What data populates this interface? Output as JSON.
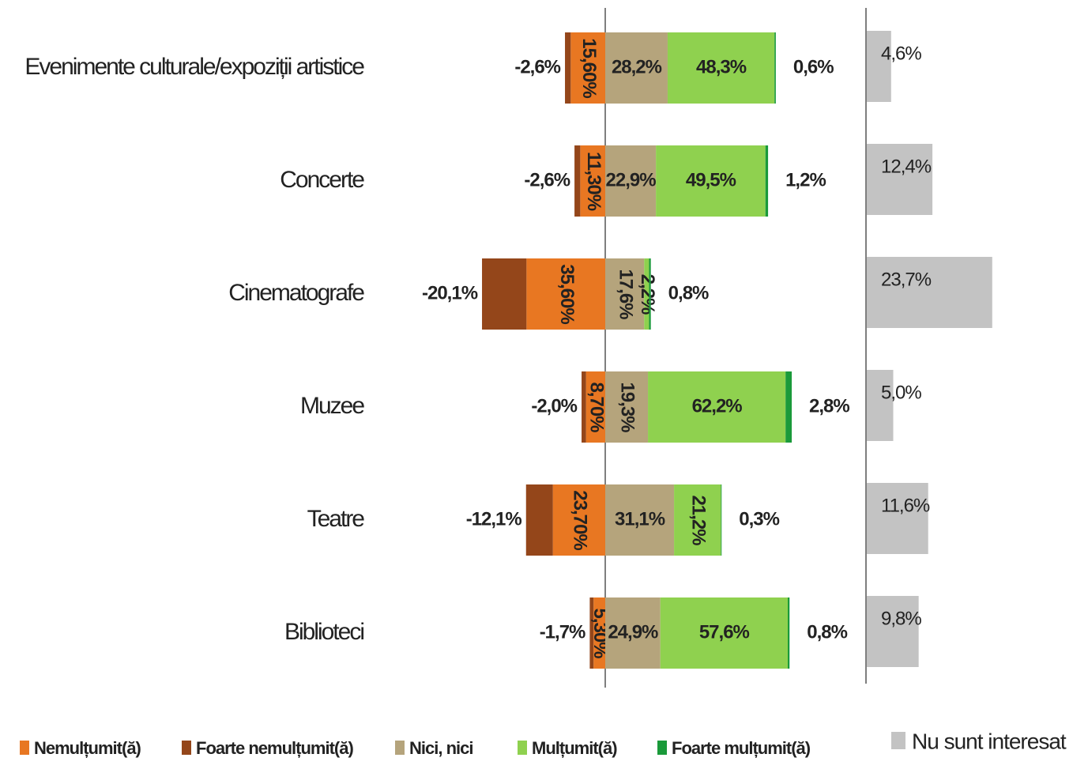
{
  "chart_data": {
    "type": "diverging-bar",
    "categories": [
      "Evenimente culturale/expoziții artistice",
      "Concerte",
      "Cinematografe",
      "Muzee",
      "Teatre",
      "Biblioteci"
    ],
    "series": [
      {
        "name": "Nemulțumit(ă)",
        "color": "#e87722",
        "values": [
          15.6,
          11.3,
          35.6,
          8.7,
          23.7,
          5.3
        ],
        "value_labels": [
          "15,60%",
          "11,30%",
          "35,60%",
          "8,70%",
          "23,70%",
          "5,30%"
        ]
      },
      {
        "name": "Foarte nemulțumit(ă)",
        "color": "#94461a",
        "values": [
          -2.6,
          -2.6,
          -20.1,
          -2.0,
          -12.1,
          -1.7
        ],
        "value_labels": [
          "-2,6%",
          "-2,6%",
          "-20,1%",
          "-2,0%",
          "-12,1%",
          "-1,7%"
        ]
      },
      {
        "name": "Nici, nici",
        "color": "#b5a47c",
        "values": [
          28.2,
          22.9,
          17.6,
          19.3,
          31.1,
          24.9
        ],
        "value_labels": [
          "28,2%",
          "22,9%",
          "17,6%",
          "19,3%",
          "31,1%",
          "24,9%"
        ]
      },
      {
        "name": "Mulțumit(ă)",
        "color": "#8fd14f",
        "values": [
          48.3,
          49.5,
          2.2,
          62.2,
          21.2,
          57.6
        ],
        "value_labels": [
          "48,3%",
          "49,5%",
          "2,2%",
          "62,2%",
          "21,2%",
          "57,6%"
        ]
      },
      {
        "name": "Foarte mulțumit(ă)",
        "color": "#1a9a3a",
        "values": [
          0.6,
          1.2,
          0.8,
          2.8,
          0.3,
          0.8
        ],
        "value_labels": [
          "0,6%",
          "1,2%",
          "0,8%",
          "2,8%",
          "0,3%",
          "0,8%"
        ]
      },
      {
        "name": "Nu sunt interesat",
        "color": "#c3c3c3",
        "values": [
          4.6,
          12.4,
          23.7,
          5.0,
          11.6,
          9.8
        ],
        "value_labels": [
          "4,6%",
          "12,4%",
          "23,7%",
          "5,0%",
          "11,6%",
          "9,8%"
        ]
      }
    ]
  }
}
